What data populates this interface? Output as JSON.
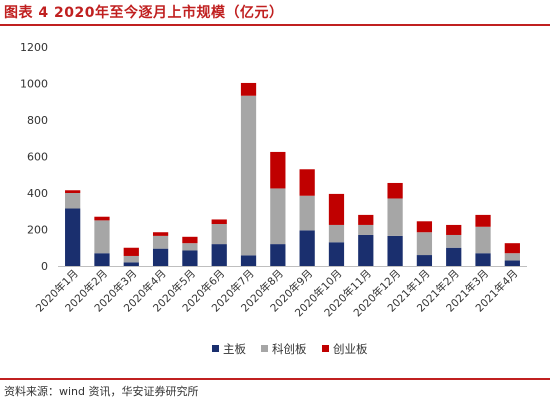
{
  "header": {
    "title": "图表 4 2020年至今逐月上市规模（亿元）"
  },
  "footer": {
    "source": "资料来源：wind 资讯，华安证券研究所"
  },
  "colors": {
    "main": "#1a2f6e",
    "star": "#a6a6a6",
    "chinext": "#c00000",
    "accent": "#c02020"
  },
  "chart_data": {
    "type": "bar",
    "stacked": true,
    "title": "",
    "xlabel": "",
    "ylabel": "",
    "ylim": [
      0,
      1200
    ],
    "yticks": [
      0,
      200,
      400,
      600,
      800,
      1000,
      1200
    ],
    "grid": false,
    "legend_position": "bottom",
    "categories": [
      "2020年1月",
      "2020年2月",
      "2020年3月",
      "2020年4月",
      "2020年5月",
      "2020年6月",
      "2020年7月",
      "2020年8月",
      "2020年9月",
      "2020年10月",
      "2020年11月",
      "2020年12月",
      "2021年1月",
      "2021年2月",
      "2021年3月",
      "2021年4月"
    ],
    "series": [
      {
        "name": "主板",
        "color": "#1a2f6e",
        "values": [
          315,
          70,
          20,
          95,
          85,
          120,
          58,
          120,
          195,
          130,
          170,
          165,
          60,
          100,
          70,
          30
        ]
      },
      {
        "name": "科创板",
        "color": "#a6a6a6",
        "values": [
          85,
          180,
          35,
          70,
          40,
          110,
          875,
          305,
          190,
          95,
          55,
          205,
          125,
          70,
          145,
          40
        ]
      },
      {
        "name": "创业板",
        "color": "#c00000",
        "values": [
          15,
          20,
          45,
          20,
          35,
          25,
          70,
          200,
          145,
          170,
          55,
          85,
          60,
          55,
          65,
          55
        ]
      }
    ]
  }
}
